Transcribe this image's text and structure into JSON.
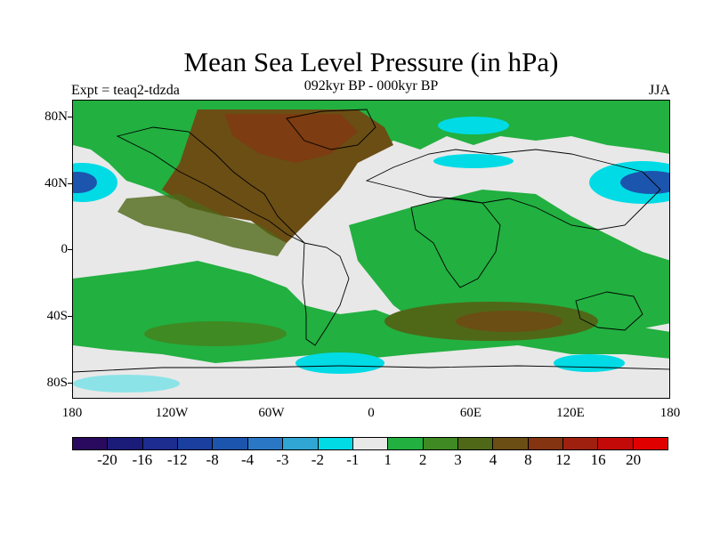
{
  "title": "Mean Sea Level Pressure (in hPa)",
  "subtitle": "092kyr BP - 000kyr BP",
  "left_label": "Expt = teaq2-tdzda",
  "right_label": "JJA",
  "y_axis_labels": [
    "80N",
    "40N",
    "0",
    "40S",
    "80S"
  ],
  "x_axis_labels": [
    "180",
    "120W",
    "60W",
    "0",
    "60E",
    "120E",
    "180"
  ],
  "colorbar": {
    "labels": [
      "-20",
      "-16",
      "-12",
      "-8",
      "-4",
      "-3",
      "-2",
      "-1",
      "1",
      "2",
      "3",
      "4",
      "8",
      "12",
      "16",
      "20"
    ],
    "colors": [
      "#2a0a5e",
      "#1b1b7a",
      "#1c2d8f",
      "#1b3f9e",
      "#1c55ad",
      "#2a78c5",
      "#30a6d4",
      "#00dbe6",
      "#e8e8e8",
      "#22b040",
      "#3f8a22",
      "#4f6818",
      "#6b4e14",
      "#843410",
      "#a02010",
      "#c40a08",
      "#e00000"
    ]
  },
  "map_colors": {
    "neutral": "#e8e8e8",
    "light_blue": "#00dbe6",
    "mid_blue": "#2a78c5",
    "blue": "#1c55ad",
    "green": "#22b040",
    "dark_green": "#3f8a22",
    "olive": "#4f6818",
    "brown": "#6b4e14",
    "red_brown": "#843410",
    "coast": "#000000"
  }
}
